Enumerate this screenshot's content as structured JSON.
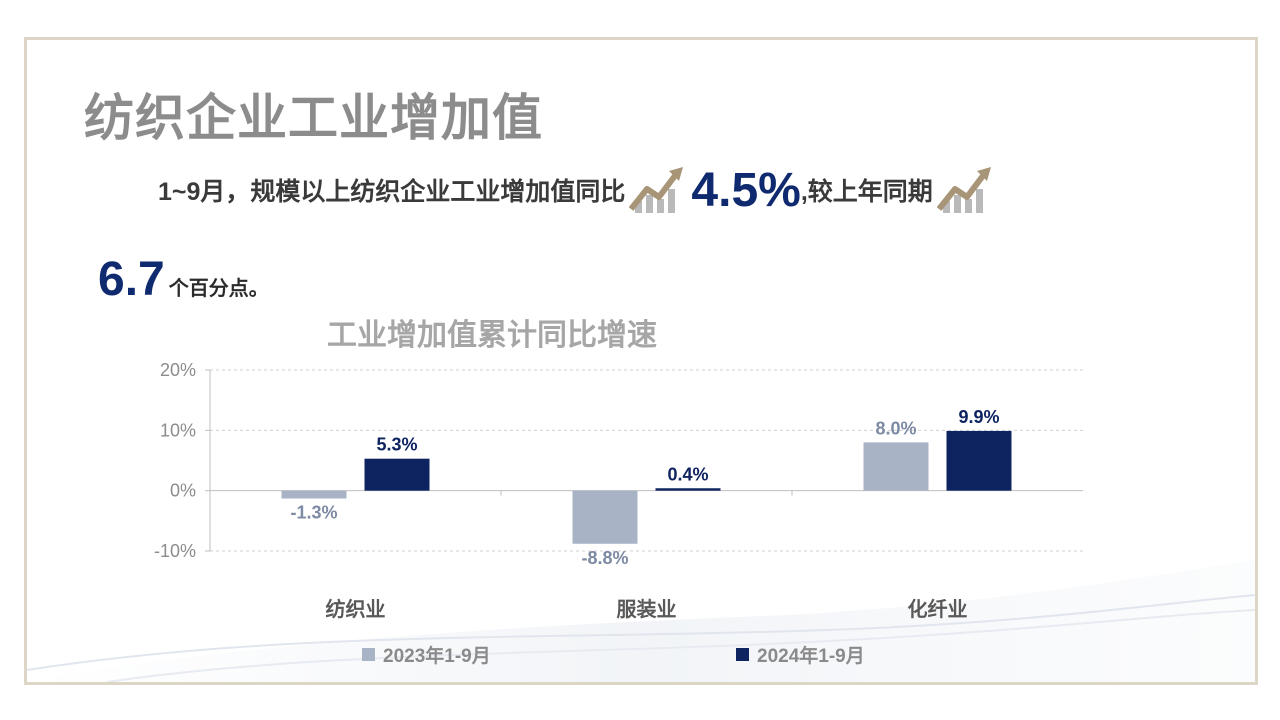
{
  "page": {
    "title": "纺织企业工业增加值"
  },
  "summary": {
    "text_before": "1~9月，规模以上纺织企业工业增加值同比",
    "value1": "4.5%",
    "text_middle": ",较上年同期",
    "value2": "6.7",
    "text_after": "个百分点。",
    "icons": [
      "trend-up-icon",
      "trend-up-icon"
    ]
  },
  "colors": {
    "series2023": "#a9b3c6",
    "series2024": "#0e2461",
    "label2023": "#7d8aa3",
    "label2024": "#0e2461",
    "accent_icon": "#a89476"
  },
  "chart_data": {
    "type": "bar",
    "title": "工业增加值累计同比增速",
    "categories": [
      "纺织业",
      "服装业",
      "化纤业"
    ],
    "series": [
      {
        "name": "2023年1-9月",
        "values": [
          -1.3,
          -8.8,
          8.0
        ],
        "labels": [
          "-1.3%",
          "-8.8%",
          "8.0%"
        ]
      },
      {
        "name": "2024年1-9月",
        "values": [
          5.3,
          0.4,
          9.9
        ],
        "labels": [
          "5.3%",
          "0.4%",
          "9.9%"
        ]
      }
    ],
    "ylim": [
      -10,
      20
    ],
    "yticks": [
      20,
      10,
      0,
      -10
    ],
    "ytick_labels": [
      "20%",
      "10%",
      "0%",
      "-10%"
    ],
    "grid": true,
    "legend_position": "bottom"
  }
}
